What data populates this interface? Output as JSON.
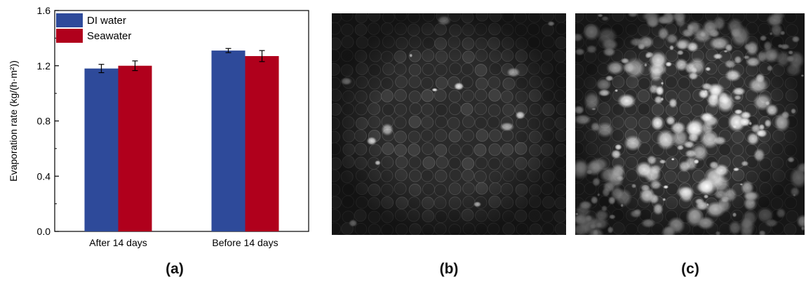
{
  "chart_data": {
    "type": "bar",
    "categories": [
      "After 14 days",
      "Before 14 days"
    ],
    "series": [
      {
        "name": "DI water",
        "values": [
          1.18,
          1.31
        ],
        "errors": [
          0.03,
          0.015
        ],
        "color": "#2e4a9a"
      },
      {
        "name": "Seawater",
        "values": [
          1.2,
          1.27
        ],
        "errors": [
          0.035,
          0.04
        ],
        "color": "#b0001c"
      }
    ],
    "ylabel": "Evaporation rate (kg/(h·m²))",
    "xlabel": "",
    "ylim": [
      0,
      1.6
    ],
    "yticks": [
      "0.0",
      "0.4",
      "0.8",
      "1.2",
      "1.6"
    ],
    "legend": "top-left",
    "grid": false
  },
  "panels": {
    "a_label": "(a)",
    "b_label": "(b)",
    "c_label": "(c)"
  },
  "images": {
    "b_description_icon": "microscope-image-sparse",
    "c_description_icon": "microscope-image-dense"
  }
}
